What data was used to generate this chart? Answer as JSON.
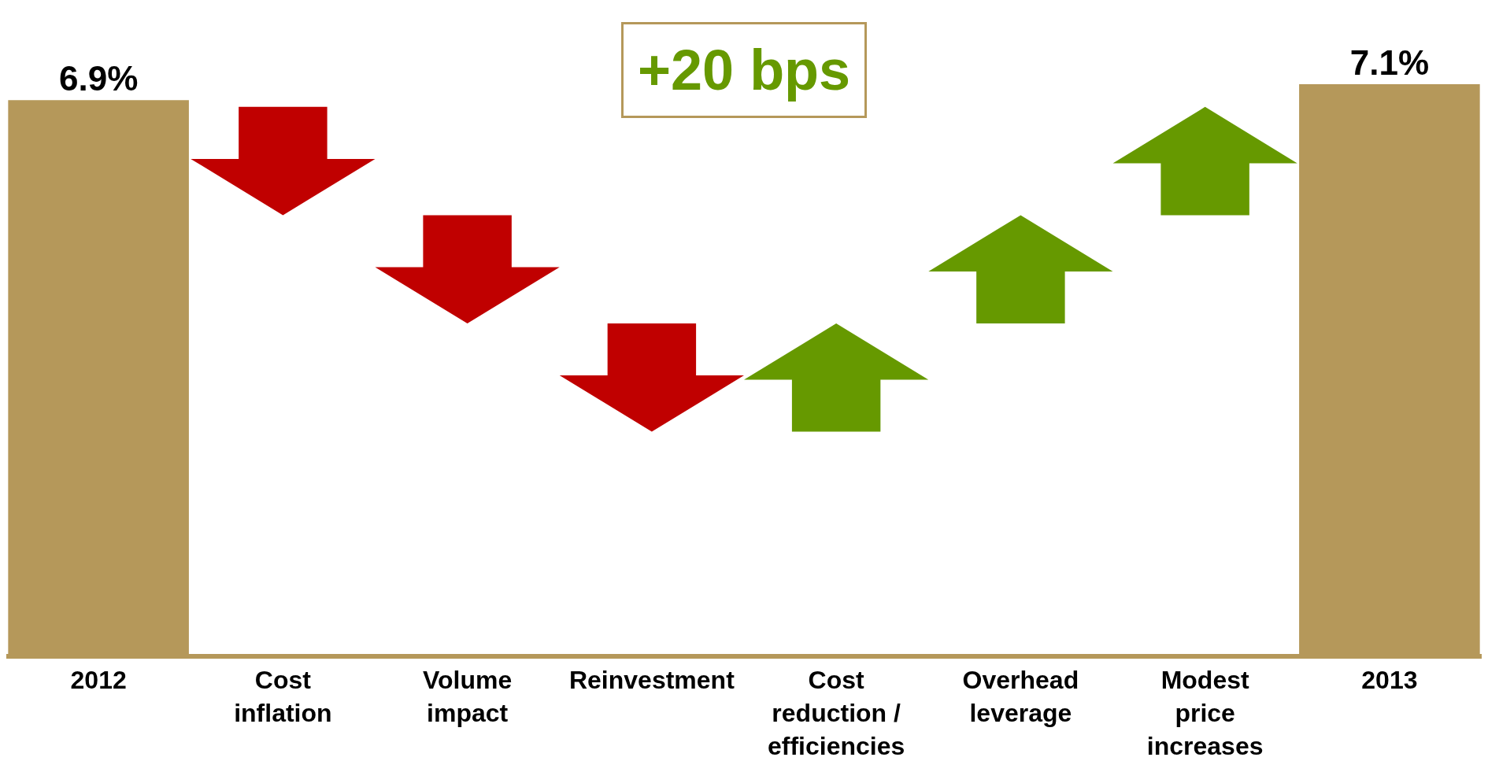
{
  "chart_data": {
    "type": "bar",
    "categories": [
      "2012",
      "Cost\ninflation",
      "Volume\nimpact",
      "Reinvestment",
      "Cost\nreduction /\nefficiencies",
      "Overhead\nleverage",
      "Modest\nprice\nincreases",
      "2013"
    ],
    "values": [
      6.9,
      null,
      null,
      null,
      null,
      null,
      null,
      7.1
    ],
    "colors": [
      "#b5985a",
      "#c00000",
      "#c00000",
      "#c00000",
      "#669900",
      "#669900",
      "#669900",
      "#b5985a"
    ],
    "value_labels": [
      "6.9%",
      null,
      null,
      null,
      null,
      null,
      null,
      "7.1%"
    ],
    "annotations": [
      "+20 bps"
    ],
    "legend": false
  }
}
